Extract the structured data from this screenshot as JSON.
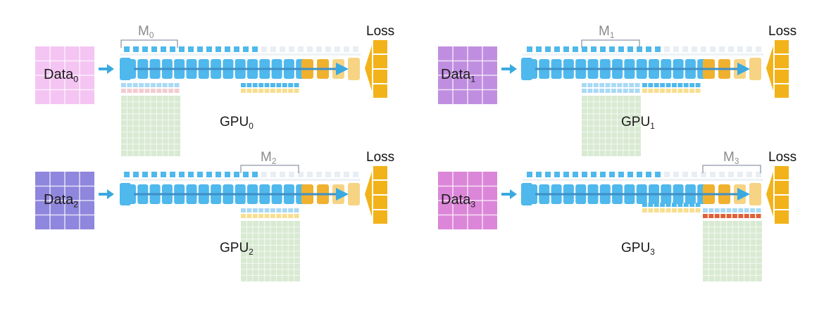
{
  "colors": {
    "arrow": "#3aa9e0",
    "activation": "#4fb8ec",
    "activation_light": "#a9d9f5",
    "grad_pink": "#f3cccf",
    "grad_yellow": "#f8de8f",
    "optimizer_green": "#d9ead3",
    "optimizer_grid": "#b8d3ae",
    "orange_layer": "#f0b12f",
    "orange_light": "#f6d484",
    "loss_block": "#f2b31a",
    "red_row": "#e06035",
    "bracket": "#8e98a6"
  },
  "panels": [
    {
      "id": "gpu0",
      "data_label": "Data",
      "data_sub": "0",
      "data_color": "#f4c4f3",
      "gpu_label": "GPU",
      "gpu_sub": "0",
      "model_label": "M",
      "model_sub": "0",
      "loss_label": "Loss"
    },
    {
      "id": "gpu1",
      "data_label": "Data",
      "data_sub": "1",
      "data_color": "#c08ee0",
      "gpu_label": "GPU",
      "gpu_sub": "1",
      "model_label": "M",
      "model_sub": "1",
      "loss_label": "Loss"
    },
    {
      "id": "gpu2",
      "data_label": "Data",
      "data_sub": "2",
      "data_color": "#8f86dd",
      "gpu_label": "GPU",
      "gpu_sub": "2",
      "model_label": "M",
      "model_sub": "2",
      "loss_label": "Loss"
    },
    {
      "id": "gpu3",
      "data_label": "Data",
      "data_sub": "3",
      "data_color": "#dc86d9",
      "gpu_label": "GPU",
      "gpu_sub": "3",
      "model_label": "M",
      "model_sub": "3",
      "loss_label": "Loss"
    }
  ]
}
